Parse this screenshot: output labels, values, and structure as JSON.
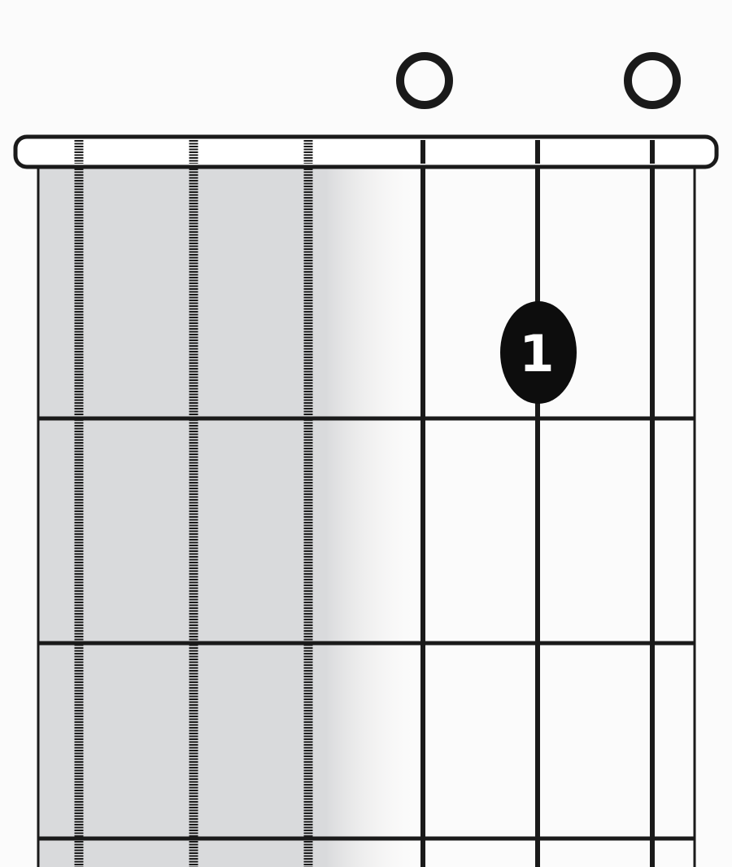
{
  "diagram": {
    "type": "chord-fingering",
    "string_count": 6,
    "frets_shown": 3,
    "muted_strings": [
      1,
      2,
      3
    ],
    "open_strings": [
      4,
      6
    ],
    "fingered_notes": [
      {
        "string": 5,
        "fret": 1,
        "finger": "1"
      }
    ],
    "colors": {
      "background": "#fbfbfb",
      "ink": "#1a1a1a",
      "muted_shade": "#d9dadc",
      "finger_dot": "#0d0d0d",
      "finger_text": "#ffffff"
    }
  }
}
